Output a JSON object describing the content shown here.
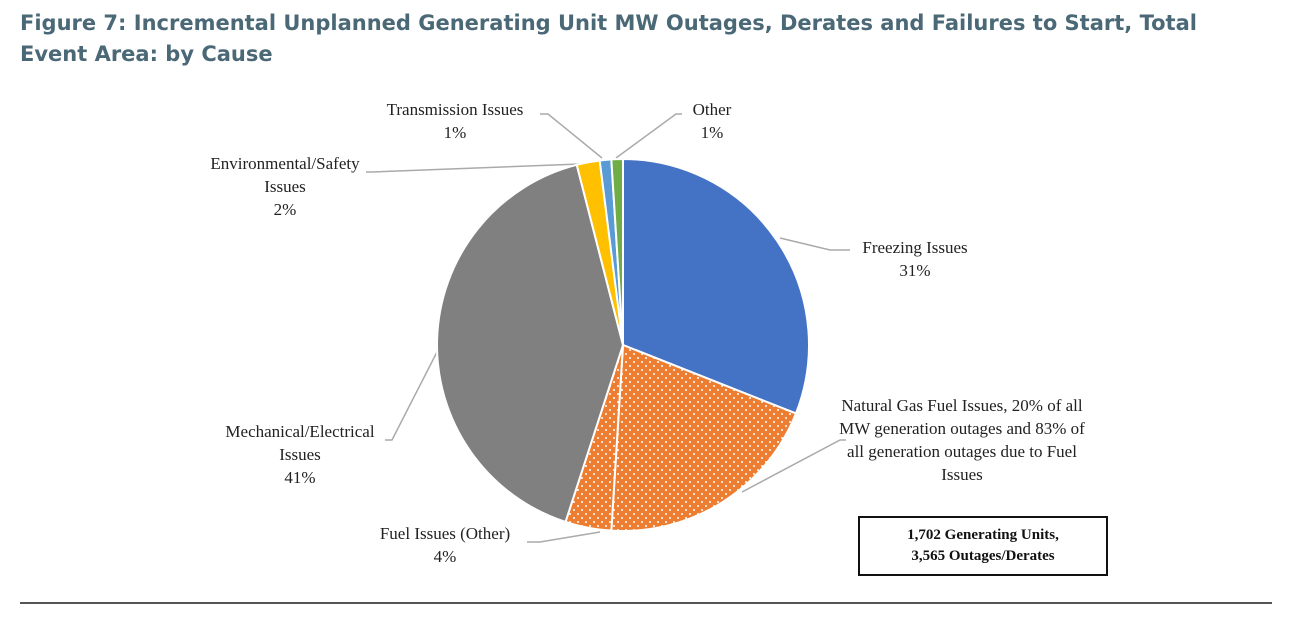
{
  "chart_data": {
    "type": "pie",
    "title": "Figure 7: Incremental Unplanned Generating Unit MW Outages, Derates and Failures to Start, Total Event Area: by Cause",
    "categories": [
      "Freezing Issues",
      "Natural Gas Fuel Issues, 20% of all MW generation outages and 83% of all generation outages due to Fuel Issues",
      "Fuel Issues (Other)",
      "Mechanical/Electrical Issues",
      "Environmental/Safety Issues",
      "Transmission Issues",
      "Other"
    ],
    "values": [
      31,
      20,
      4,
      41,
      2,
      1,
      1
    ],
    "value_labels": [
      "31%",
      null,
      "4%",
      "41%",
      "2%",
      "1%",
      "1%"
    ],
    "colors": [
      "#4472c4",
      "#ed7d31",
      "#ed7d31",
      "#808080",
      "#ffc000",
      "#5b9bd5",
      "#70ad47"
    ],
    "dotted": [
      false,
      true,
      true,
      false,
      false,
      false,
      false
    ],
    "annotation": [
      "1,702 Generating Units,",
      "3,565 Outages/Derates"
    ]
  }
}
